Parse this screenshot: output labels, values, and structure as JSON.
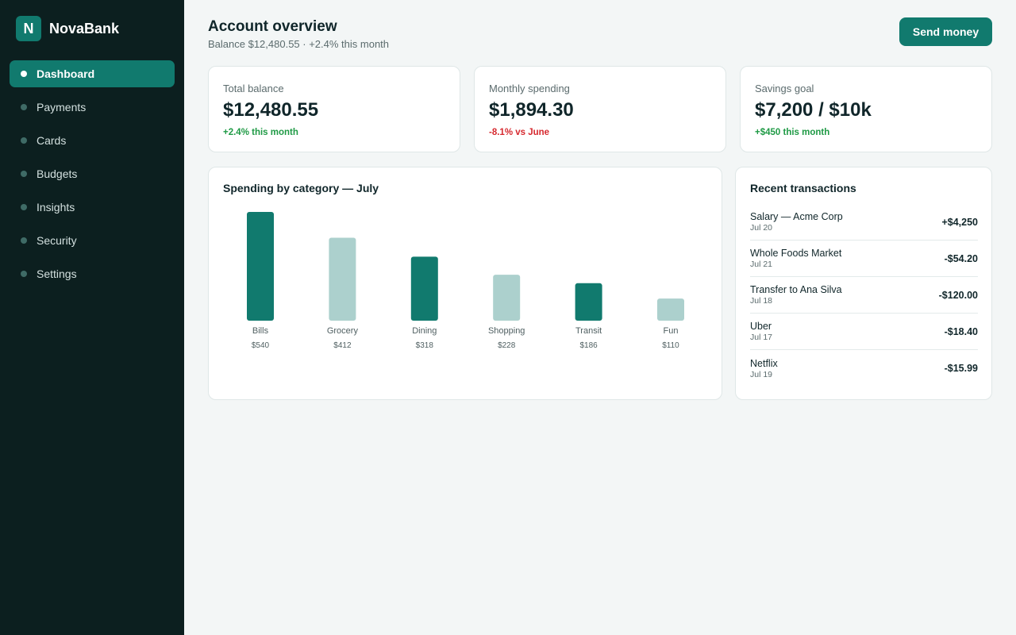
{
  "brand": {
    "logo_letter": "N",
    "name": "NovaBank",
    "color": "#117a6e"
  },
  "sidebar": {
    "items": [
      {
        "label": "Dashboard",
        "active": true
      },
      {
        "label": "Payments",
        "active": false
      },
      {
        "label": "Cards",
        "active": false
      },
      {
        "label": "Budgets",
        "active": false
      },
      {
        "label": "Insights",
        "active": false
      },
      {
        "label": "Security",
        "active": false
      },
      {
        "label": "Settings",
        "active": false
      }
    ]
  },
  "header": {
    "title": "Account overview",
    "subtitle": "Balance $12,480.55 · +2.4% this month",
    "send_button": "Send money"
  },
  "stats": [
    {
      "label": "Total balance",
      "value": "$12,480.55",
      "delta": "+2.4% this month",
      "delta_color": "#1f9a45"
    },
    {
      "label": "Monthly spending",
      "value": "$1,894.30",
      "delta": "-8.1% vs June",
      "delta_color": "#d6282e"
    },
    {
      "label": "Savings goal",
      "value": "$7,200 / $10k",
      "delta": "+$450 this month",
      "delta_color": "#1f9a45"
    }
  ],
  "chart_data": {
    "type": "bar",
    "title": "Spending by category — July",
    "categories": [
      "Bills",
      "Grocery",
      "Dining",
      "Shopping",
      "Transit",
      "Fun"
    ],
    "values": [
      540,
      412,
      318,
      228,
      186,
      110
    ],
    "value_labels": [
      "$540",
      "$412",
      "$318",
      "$228",
      "$186",
      "$110"
    ],
    "colors": [
      "#117a6e",
      "#acd0cd",
      "#117a6e",
      "#acd0cd",
      "#117a6e",
      "#acd0cd"
    ],
    "xlabel": "",
    "ylabel": "",
    "grid": false
  },
  "transactions": {
    "title": "Recent transactions",
    "items": [
      {
        "name": "Salary — Acme Corp",
        "date": "Jul 20",
        "amount": "+$4,250"
      },
      {
        "name": "Whole Foods Market",
        "date": "Jul 21",
        "amount": "-$54.20"
      },
      {
        "name": "Transfer to Ana Silva",
        "date": "Jul 18",
        "amount": "-$120.00"
      },
      {
        "name": "Uber",
        "date": "Jul 17",
        "amount": "-$18.40"
      },
      {
        "name": "Netflix",
        "date": "Jul 19",
        "amount": "-$15.99"
      }
    ]
  }
}
